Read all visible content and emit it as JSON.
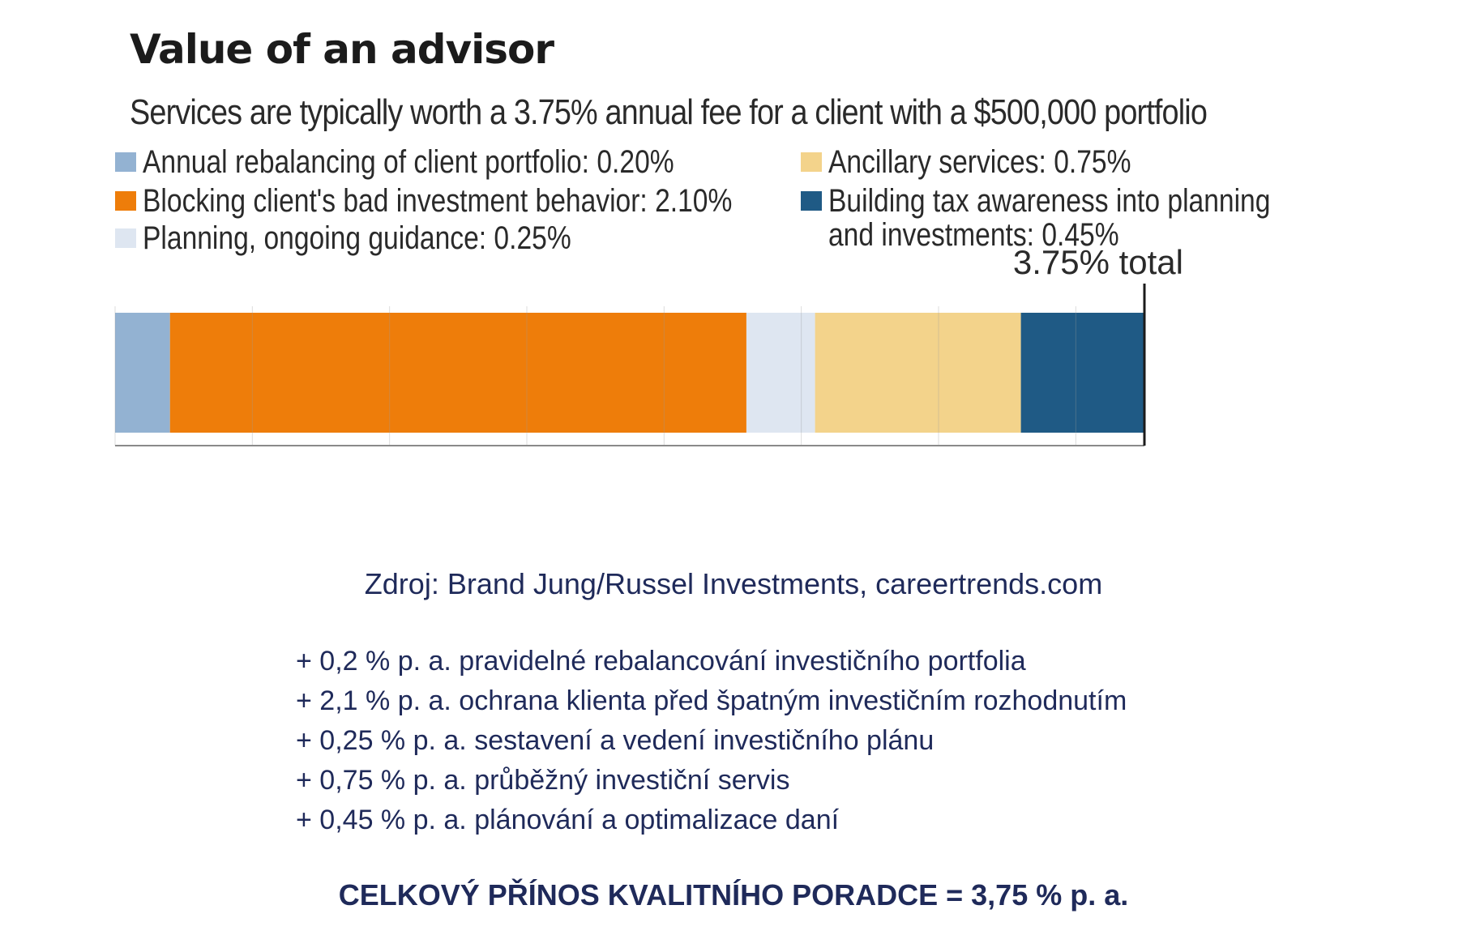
{
  "chart_data": {
    "type": "bar",
    "orientation": "horizontal-stacked",
    "title": "Value of an advisor",
    "subtitle": "Services are typically worth a 3.75% annual fee for a client with a $500,000 portfolio",
    "unit": "%",
    "total": 3.75,
    "total_label": "3.75% total",
    "xlim": [
      0,
      3.75
    ],
    "legend_position": "top",
    "series": [
      {
        "name": "Annual rebalancing of client portfolio: 0.20%",
        "value": 0.2,
        "color": "#93b2d2"
      },
      {
        "name": "Blocking client's bad investment behavior: 2.10%",
        "value": 2.1,
        "color": "#ee7d0a"
      },
      {
        "name": "Planning, ongoing guidance: 0.25%",
        "value": 0.25,
        "color": "#dee6f1"
      },
      {
        "name": "Ancillary services: 0.75%",
        "value": 0.75,
        "color": "#f3d38b"
      },
      {
        "name": "Building tax awareness into planning and investments: 0.45%",
        "value": 0.45,
        "color": "#1f5a85"
      }
    ]
  },
  "legend_lines": {
    "item_5_line1": "Building tax awareness into planning",
    "item_5_line2": "and investments: 0.45%"
  },
  "source": "Zdroj: Brand Jung/Russel Investments, careertrends.com",
  "items": [
    "+ 0,2 % p. a. pravidelné rebalancování investičního portfolia",
    "+ 2,1 % p. a. ochrana klienta před špatným investičním rozhodnutím",
    "+ 0,25 % p. a. sestavení a vedení investičního plánu",
    "+ 0,75 % p. a. průběžný investiční servis",
    "+ 0,45 % p. a. plánování a optimalizace daní"
  ],
  "summary": "CELKOVÝ PŘÍNOS KVALITNÍHO PORADCE = 3,75 % p. a."
}
